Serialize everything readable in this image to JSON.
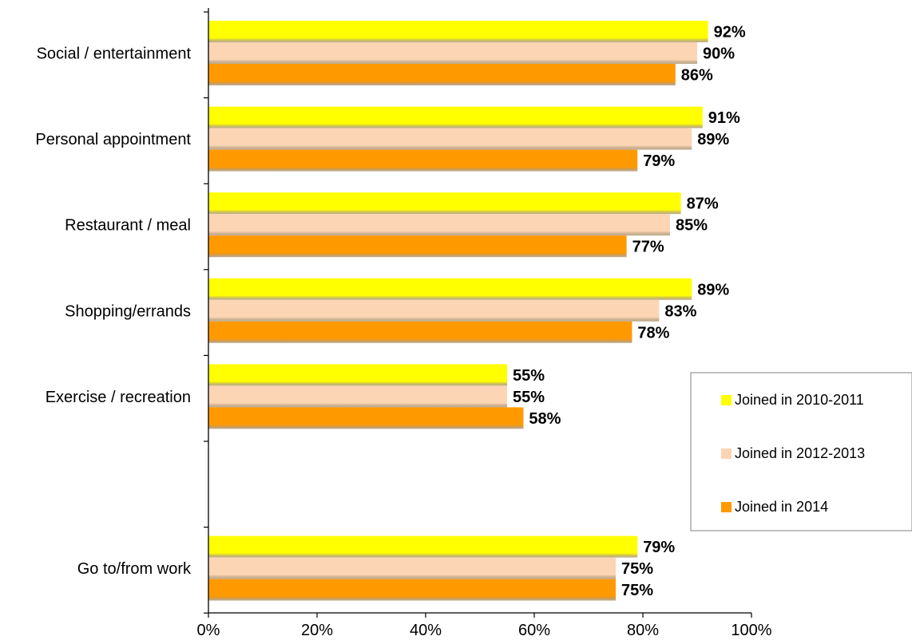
{
  "chart_data": {
    "type": "bar",
    "orientation": "horizontal",
    "categories": [
      "Social / entertainment",
      "Personal appointment",
      "Restaurant / meal",
      "Shopping/errands",
      "Exercise / recreation",
      "",
      "Go to/from work"
    ],
    "series": [
      {
        "name": "Joined in 2010-2011",
        "color": "#FFFF00",
        "values": [
          92,
          91,
          87,
          89,
          55,
          null,
          79
        ]
      },
      {
        "name": "Joined in 2012-2013",
        "color": "#FCD5B4",
        "values": [
          90,
          89,
          85,
          83,
          55,
          null,
          75
        ]
      },
      {
        "name": "Joined in 2014",
        "color": "#FF9900",
        "values": [
          86,
          79,
          77,
          78,
          58,
          null,
          75
        ]
      }
    ],
    "value_suffix": "%",
    "xlim": [
      0,
      100
    ],
    "xticks": [
      0,
      20,
      40,
      60,
      80,
      100
    ],
    "xtick_labels": [
      "0%",
      "20%",
      "40%",
      "60%",
      "80%",
      "100%"
    ],
    "title": "",
    "xlabel": "",
    "ylabel": "",
    "grid": false,
    "legend": {
      "placement": "right",
      "entries": [
        "Joined in 2010-2011",
        "Joined in 2012-2013",
        "Joined in 2014"
      ]
    }
  }
}
